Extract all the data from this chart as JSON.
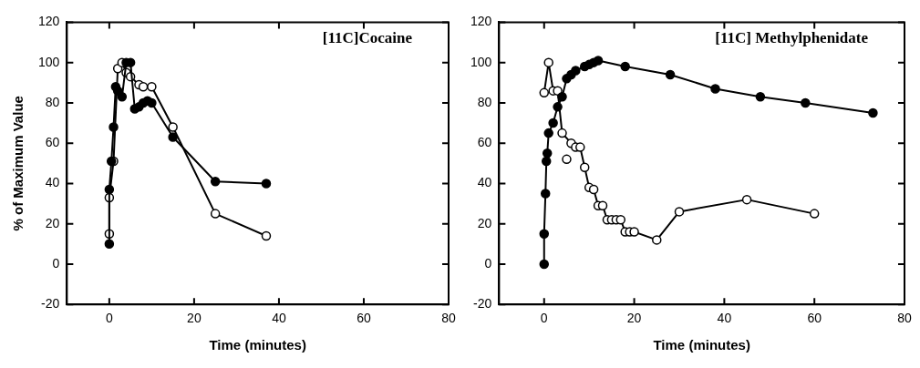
{
  "chart_data": [
    {
      "type": "line",
      "title": "[11C]Cocaine",
      "xlabel": "Time (minutes)",
      "ylabel": "% of Maximum Value",
      "xlim": [
        -10,
        80
      ],
      "xticks": [
        0,
        20,
        40,
        60,
        80
      ],
      "ylim": [
        -20,
        120
      ],
      "yticks": [
        -20,
        0,
        20,
        40,
        60,
        80,
        100,
        120
      ],
      "grid": false,
      "legend": false,
      "marker": "circle",
      "line_style": "solid",
      "series": [
        {
          "color": "#000000",
          "x": [
            0,
            0,
            0.5,
            1,
            1.5,
            2,
            3,
            4,
            5,
            6,
            7,
            8,
            9,
            10,
            15,
            25,
            37
          ],
          "values": [
            10,
            37,
            51,
            68,
            88,
            86,
            83,
            100,
            100,
            77,
            78,
            80,
            81,
            80,
            63,
            41,
            40
          ]
        },
        {
          "color": "#000000",
          "x": [
            0,
            0,
            1,
            2,
            3,
            4,
            5,
            7,
            8,
            10,
            15,
            25,
            37
          ],
          "values": [
            15,
            33,
            51,
            97,
            100,
            95,
            93,
            89,
            88,
            88,
            68,
            25,
            14
          ]
        }
      ]
    },
    {
      "type": "line",
      "title": "[11C] Methylphenidate",
      "xlabel": "Time (minutes)",
      "xlim": [
        -10,
        80
      ],
      "xticks": [
        0,
        20,
        40,
        60,
        80
      ],
      "ylim": [
        -20,
        120
      ],
      "yticks": [
        -20,
        0,
        20,
        40,
        60,
        80,
        100,
        120
      ],
      "grid": false,
      "legend": false,
      "marker": "circle",
      "line_style": "solid",
      "series": [
        {
          "color": "#000000",
          "x": [
            0,
            0,
            0.3,
            0.5,
            0.7,
            1,
            2,
            3,
            4,
            5,
            6,
            7,
            9,
            10,
            11,
            12,
            18,
            28,
            38,
            48,
            58,
            73
          ],
          "values": [
            0,
            15,
            35,
            51,
            55,
            65,
            70,
            78,
            83,
            92,
            94,
            96,
            98,
            99,
            100,
            101,
            98,
            94,
            87,
            83,
            80,
            75
          ]
        },
        {
          "color": "#000000",
          "x": [
            0,
            1,
            2,
            3,
            4,
            6,
            7,
            8,
            9,
            10,
            11,
            12,
            13,
            14,
            15,
            16,
            17,
            18,
            19,
            20,
            25,
            30,
            45,
            60
          ],
          "values": [
            85,
            100,
            86,
            86,
            65,
            60,
            58,
            58,
            48,
            38,
            37,
            29,
            29,
            22,
            22,
            22,
            22,
            16,
            16,
            16,
            12,
            26,
            32,
            25
          ]
        },
        {
          "type": "scatter",
          "color": "#000000",
          "x": [
            5
          ],
          "values": [
            52
          ]
        }
      ]
    }
  ]
}
